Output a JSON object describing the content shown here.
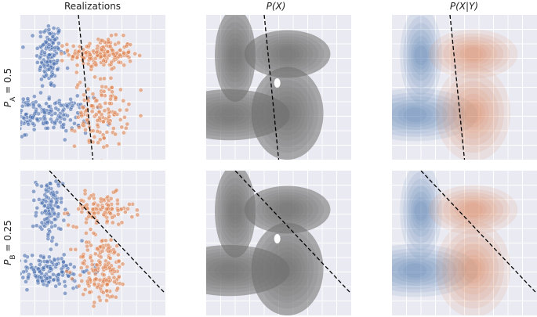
{
  "chart_data": {
    "type": "scatter",
    "column_titles": [
      "Realizations",
      "P(X)",
      "P(X|Y)"
    ],
    "row_labels": [
      {
        "prefix": "P",
        "sub": "A",
        "rest": " = 0.5"
      },
      {
        "prefix": "P",
        "sub": "B",
        "rest": " = 0.25"
      }
    ],
    "xlim": [
      0,
      10
    ],
    "ylim": [
      0,
      10
    ],
    "grid": true,
    "legend": "none",
    "colors": {
      "blue": "#4c72b0",
      "orange": "#dd8452",
      "gray": "#6e6e6e",
      "panel_bg": "#eaeaf2",
      "grid": "#ffffff"
    },
    "clusters": [
      {
        "class": "blue",
        "cx": 2.0,
        "cy": 7.2,
        "sx": 0.45,
        "sy": 1.2
      },
      {
        "class": "orange",
        "cx": 5.6,
        "cy": 7.3,
        "sx": 1.1,
        "sy": 0.55
      },
      {
        "class": "blue",
        "cx": 1.6,
        "cy": 3.1,
        "sx": 1.6,
        "sy": 0.6
      },
      {
        "class": "orange",
        "cx": 5.6,
        "cy": 3.2,
        "sx": 0.9,
        "sy": 1.2
      }
    ],
    "rows": [
      {
        "name": "P_A = 0.5",
        "boundary": {
          "x1": 4.0,
          "y1": 10.0,
          "x2": 5.0,
          "y2": 0.0
        },
        "counts": {
          "blue_top": 130,
          "orange_top": 170,
          "blue_bottom": 180,
          "orange_bottom": 130
        }
      },
      {
        "name": "P_B = 0.25",
        "boundary": {
          "x1": 2.0,
          "y1": 10.0,
          "x2": 10.0,
          "y2": 1.5
        },
        "counts": {
          "blue_top": 110,
          "orange_top": 100,
          "blue_bottom": 170,
          "orange_bottom": 160
        }
      }
    ]
  }
}
